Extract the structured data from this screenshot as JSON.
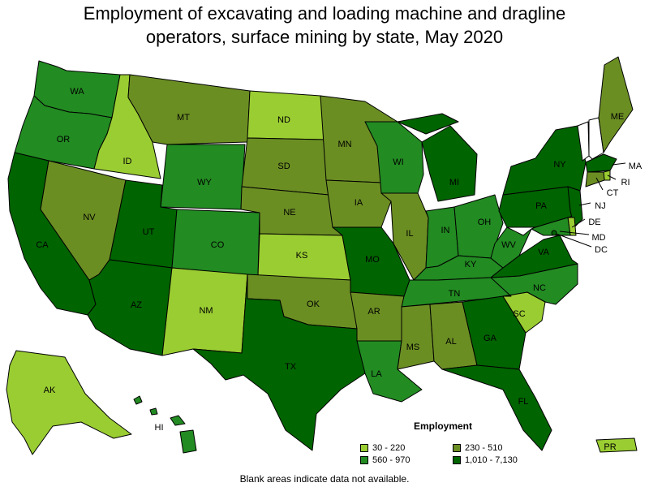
{
  "title_line1": "Employment of excavating and loading machine and dragline",
  "title_line2": "operators, surface mining by state, May 2020",
  "legend": {
    "title": "Employment",
    "items": [
      {
        "label": "30 - 220",
        "color": "#9acd32"
      },
      {
        "label": "230 - 510",
        "color": "#6b8e23"
      },
      {
        "label": "560 - 970",
        "color": "#228b22"
      },
      {
        "label": "1,010 - 7,130",
        "color": "#006400"
      }
    ]
  },
  "no_data_color": "#ffffff",
  "footnote": "Blank areas indicate data not available.",
  "states": {
    "WA": {
      "label": "WA",
      "class": "560 - 970"
    },
    "OR": {
      "label": "OR",
      "class": "560 - 970"
    },
    "CA": {
      "label": "CA",
      "class": "1,010 - 7,130"
    },
    "ID": {
      "label": "ID",
      "class": "30 - 220"
    },
    "NV": {
      "label": "NV",
      "class": "230 - 510"
    },
    "MT": {
      "label": "MT",
      "class": "230 - 510"
    },
    "WY": {
      "label": "WY",
      "class": "560 - 970"
    },
    "UT": {
      "label": "UT",
      "class": "1,010 - 7,130"
    },
    "AZ": {
      "label": "AZ",
      "class": "1,010 - 7,130"
    },
    "CO": {
      "label": "CO",
      "class": "560 - 970"
    },
    "NM": {
      "label": "NM",
      "class": "30 - 220"
    },
    "ND": {
      "label": "ND",
      "class": "30 - 220"
    },
    "SD": {
      "label": "SD",
      "class": "230 - 510"
    },
    "NE": {
      "label": "NE",
      "class": "230 - 510"
    },
    "KS": {
      "label": "KS",
      "class": "30 - 220"
    },
    "OK": {
      "label": "OK",
      "class": "230 - 510"
    },
    "TX": {
      "label": "TX",
      "class": "1,010 - 7,130"
    },
    "MN": {
      "label": "MN",
      "class": "230 - 510"
    },
    "IA": {
      "label": "IA",
      "class": "230 - 510"
    },
    "MO": {
      "label": "MO",
      "class": "1,010 - 7,130"
    },
    "AR": {
      "label": "AR",
      "class": "230 - 510"
    },
    "LA": {
      "label": "LA",
      "class": "560 - 970"
    },
    "WI": {
      "label": "WI",
      "class": "560 - 970"
    },
    "IL": {
      "label": "IL",
      "class": "230 - 510"
    },
    "MI": {
      "label": "MI",
      "class": "1,010 - 7,130"
    },
    "IN": {
      "label": "IN",
      "class": "560 - 970"
    },
    "OH": {
      "label": "OH",
      "class": "560 - 970"
    },
    "KY": {
      "label": "KY",
      "class": "560 - 970"
    },
    "TN": {
      "label": "TN",
      "class": "560 - 970"
    },
    "MS": {
      "label": "MS",
      "class": "230 - 510"
    },
    "AL": {
      "label": "AL",
      "class": "230 - 510"
    },
    "GA": {
      "label": "GA",
      "class": "1,010 - 7,130"
    },
    "FL": {
      "label": "FL",
      "class": "1,010 - 7,130"
    },
    "SC": {
      "label": "SC",
      "class": "30 - 220"
    },
    "NC": {
      "label": "NC",
      "class": "560 - 970"
    },
    "VA": {
      "label": "VA",
      "class": "1,010 - 7,130"
    },
    "WV": {
      "label": "WV",
      "class": "560 - 970"
    },
    "PA": {
      "label": "PA",
      "class": "1,010 - 7,130"
    },
    "NY": {
      "label": "NY",
      "class": "1,010 - 7,130"
    },
    "VT": {
      "label": "",
      "class": "none"
    },
    "NH": {
      "label": "",
      "class": "none"
    },
    "ME": {
      "label": "ME",
      "class": "230 - 510"
    },
    "MA": {
      "label": "MA",
      "class": "1,010 - 7,130"
    },
    "RI": {
      "label": "RI",
      "class": "30 - 220"
    },
    "CT": {
      "label": "CT",
      "class": "230 - 510"
    },
    "NJ": {
      "label": "NJ",
      "class": "1,010 - 7,130"
    },
    "DE": {
      "label": "DE",
      "class": "30 - 220"
    },
    "MD": {
      "label": "MD",
      "class": "560 - 970"
    },
    "DC": {
      "label": "DC",
      "class": "1,010 - 7,130"
    },
    "AK": {
      "label": "AK",
      "class": "30 - 220"
    },
    "HI": {
      "label": "HI",
      "class": "560 - 970"
    },
    "PR": {
      "label": "PR",
      "class": "30 - 220"
    }
  }
}
